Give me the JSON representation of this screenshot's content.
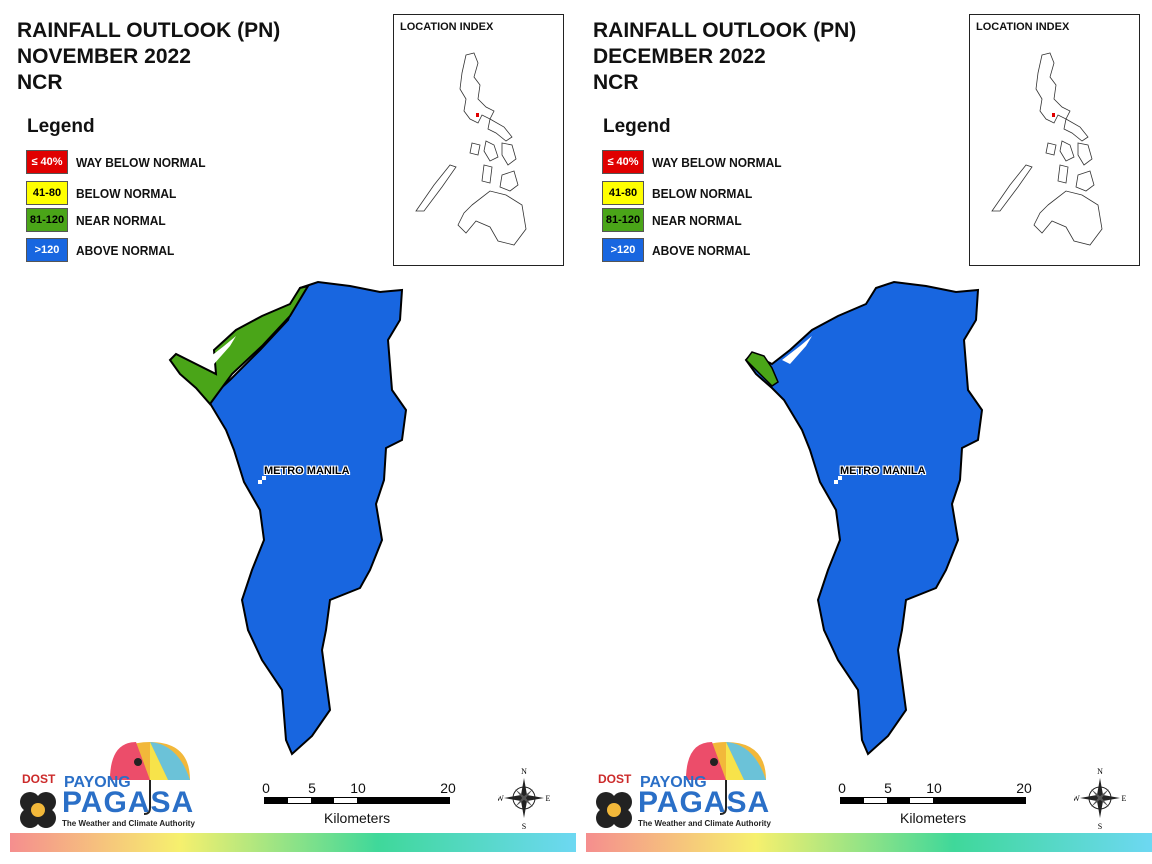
{
  "colors": {
    "way_below": "#e00000",
    "below": "#ffff00",
    "near": "#4aa518",
    "above": "#1866e0",
    "outline": "#000000"
  },
  "legend": {
    "title": "Legend",
    "items": [
      {
        "code": "≤ 40%",
        "label": "WAY BELOW NORMAL",
        "color": "#e00000",
        "text_color": "#ffffff"
      },
      {
        "code": "41-80",
        "label": "BELOW NORMAL",
        "color": "#ffff00",
        "text_color": "#000000"
      },
      {
        "code": "81-120",
        "label": "NEAR NORMAL",
        "color": "#4aa518",
        "text_color": "#000000"
      },
      {
        "code": ">120",
        "label": "ABOVE NORMAL",
        "color": "#1866e0",
        "text_color": "#ffffff"
      }
    ]
  },
  "inset": {
    "title": "LOCATION INDEX"
  },
  "place_label": "METRO MANILA",
  "scale": {
    "ticks": [
      "0",
      "5",
      "10",
      "20"
    ],
    "unit": "Kilometers"
  },
  "compass": {
    "n": "N",
    "s": "S",
    "e": "E",
    "w": "W"
  },
  "logo": {
    "dost": "DOST",
    "payong": "PAYONG",
    "pagasa": "PAGASA",
    "tagline": "The Weather and Climate Authority"
  },
  "panels": [
    {
      "title_line1": "RAINFALL OUTLOOK (PN)",
      "title_line2": "NOVEMBER 2022",
      "title_line3": "NCR",
      "category_share": {
        "near_normal": 0.12,
        "above_normal": 0.88
      }
    },
    {
      "title_line1": "RAINFALL OUTLOOK (PN)",
      "title_line2": "DECEMBER 2022",
      "title_line3": "NCR",
      "category_share": {
        "near_normal": 0.02,
        "above_normal": 0.98
      }
    }
  ]
}
